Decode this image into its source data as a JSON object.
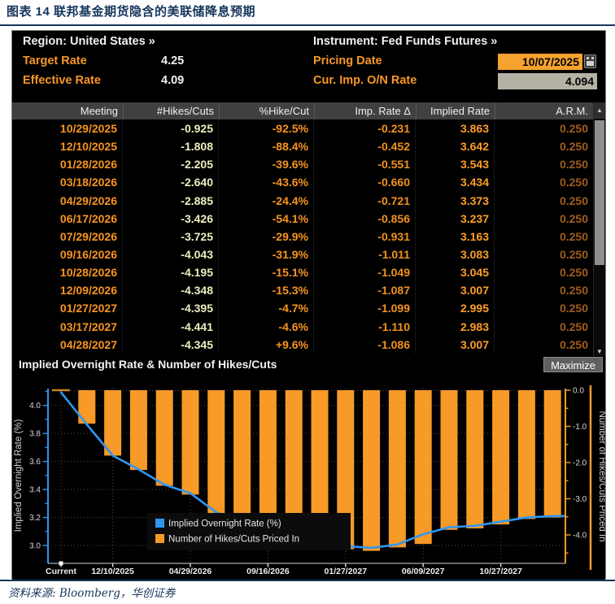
{
  "colors": {
    "accent_orange": "#f79420",
    "line_blue": "#2f96f0",
    "navy": "#16365c",
    "pale_yellow": "#edeec0",
    "dark_orange": "#a05d1c"
  },
  "icons": {
    "scroll_up": "▲",
    "scroll_down": "▼"
  },
  "figure": {
    "title": "图表 14 联邦基金期货隐含的美联储降息预期",
    "source": "资料来源: Bloomberg，华创证券"
  },
  "info": {
    "region": "Region: United States »",
    "instrument": "Instrument: Fed Funds Futures »",
    "target_rate": {
      "label": "Target Rate",
      "value": "4.25"
    },
    "effective_rate": {
      "label": "Effective Rate",
      "value": "4.09"
    },
    "pricing_date": {
      "label": "Pricing Date",
      "value": "10/07/2025"
    },
    "cur_imp_on_rate": {
      "label": "Cur. Imp. O/N Rate",
      "value": "4.094"
    }
  },
  "table": {
    "columns": [
      "Meeting",
      "#Hikes/Cuts",
      "%Hike/Cut",
      "Imp. Rate Δ",
      "Implied Rate",
      "A.R.M."
    ],
    "rows": [
      [
        "10/29/2025",
        "-0.925",
        "-92.5%",
        "-0.231",
        "3.863",
        "0.250"
      ],
      [
        "12/10/2025",
        "-1.808",
        "-88.4%",
        "-0.452",
        "3.642",
        "0.250"
      ],
      [
        "01/28/2026",
        "-2.205",
        "-39.6%",
        "-0.551",
        "3.543",
        "0.250"
      ],
      [
        "03/18/2026",
        "-2.640",
        "-43.6%",
        "-0.660",
        "3.434",
        "0.250"
      ],
      [
        "04/29/2026",
        "-2.885",
        "-24.4%",
        "-0.721",
        "3.373",
        "0.250"
      ],
      [
        "06/17/2026",
        "-3.426",
        "-54.1%",
        "-0.856",
        "3.237",
        "0.250"
      ],
      [
        "07/29/2026",
        "-3.725",
        "-29.9%",
        "-0.931",
        "3.163",
        "0.250"
      ],
      [
        "09/16/2026",
        "-4.043",
        "-31.9%",
        "-1.011",
        "3.083",
        "0.250"
      ],
      [
        "10/28/2026",
        "-4.195",
        "-15.1%",
        "-1.049",
        "3.045",
        "0.250"
      ],
      [
        "12/09/2026",
        "-4.348",
        "-15.3%",
        "-1.087",
        "3.007",
        "0.250"
      ],
      [
        "01/27/2027",
        "-4.395",
        "-4.7%",
        "-1.099",
        "2.995",
        "0.250"
      ],
      [
        "03/17/2027",
        "-4.441",
        "-4.6%",
        "-1.110",
        "2.983",
        "0.250"
      ],
      [
        "04/28/2027",
        "-4.345",
        "+9.6%",
        "-1.086",
        "3.007",
        "0.250"
      ]
    ]
  },
  "chart": {
    "maximize_label": "Maximize"
  },
  "chart_data": {
    "type": "bar",
    "subtype": "bar+line combo, dual axis",
    "title": "Implied Overnight Rate & Number of Hikes/Cuts",
    "n_slots": 20,
    "x_tick_labels": [
      "Current",
      "12/10/2025",
      "04/29/2026",
      "09/16/2026",
      "01/27/2027",
      "06/09/2027",
      "10/27/2027"
    ],
    "x_tick_slots": [
      0,
      2,
      5,
      8,
      11,
      14,
      17
    ],
    "series": [
      {
        "name": "Implied Overnight Rate (%)",
        "type": "line",
        "axis": "left",
        "color": "#2f96f0",
        "slots": [
          0,
          1,
          2,
          3,
          4,
          5,
          6,
          7,
          8,
          9,
          10,
          11,
          12,
          13,
          14,
          15,
          16,
          17,
          18,
          19
        ],
        "values": [
          4.094,
          3.863,
          3.642,
          3.543,
          3.434,
          3.373,
          3.237,
          3.163,
          3.083,
          3.045,
          3.007,
          2.995,
          2.983,
          3.007,
          3.08,
          3.13,
          3.14,
          3.17,
          3.2,
          3.21
        ]
      },
      {
        "name": "Number of Hikes/Cuts Priced In",
        "type": "bar",
        "axis": "right",
        "color": "#f79a28",
        "slots": [
          1,
          2,
          3,
          4,
          5,
          6,
          7,
          8,
          9,
          10,
          11,
          12,
          13,
          14,
          15,
          16,
          17,
          18,
          19
        ],
        "values": [
          -0.925,
          -1.808,
          -2.205,
          -2.64,
          -2.885,
          -3.426,
          -3.725,
          -4.043,
          -4.195,
          -4.348,
          -4.395,
          -4.441,
          -4.345,
          -4.25,
          -3.86,
          -3.82,
          -3.71,
          -3.56,
          -3.52
        ]
      }
    ],
    "left_axis": {
      "label": "Implied Overnight Rate (%)",
      "ticks": [
        4.0,
        3.8,
        3.6,
        3.4,
        3.2,
        3.0
      ],
      "range": [
        2.88,
        4.12
      ]
    },
    "right_axis": {
      "label": "Number of Hikes/Cuts Priced In",
      "ticks": [
        0.0,
        -1.0,
        -2.0,
        -3.0,
        -4.0
      ],
      "range": [
        -4.8,
        0.05
      ]
    },
    "current_marker": {
      "slot": 0,
      "cuts_value": 0.0,
      "color": "#c8831e"
    },
    "legend_position": "bottom-left inside plot",
    "grid": "dotted"
  }
}
